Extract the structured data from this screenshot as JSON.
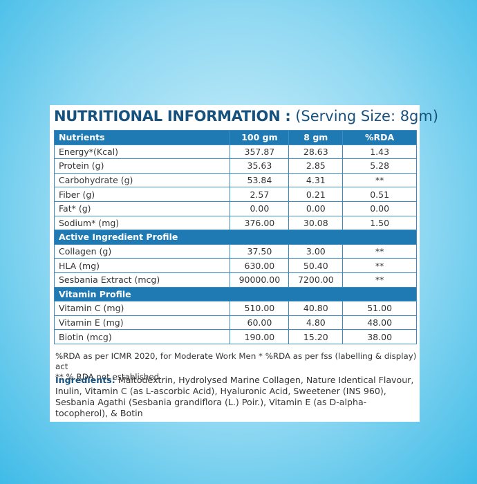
{
  "header": {
    "title": "NUTRITIONAL INFORMATION :",
    "serving": "(Serving Size: 8gm)"
  },
  "table": {
    "columns": [
      "Nutrients",
      "100 gm",
      "8 gm",
      "%RDA"
    ],
    "sections": [
      {
        "rows": [
          [
            "Energy*(Kcal)",
            "357.87",
            "28.63",
            "1.43"
          ],
          [
            "Protein (g)",
            "35.63",
            "2.85",
            "5.28"
          ],
          [
            "Carbohydrate (g)",
            "53.84",
            "4.31",
            "**"
          ],
          [
            "Fiber (g)",
            "2.57",
            "0.21",
            "0.51"
          ],
          [
            "Fat* (g)",
            "0.00",
            "0.00",
            "0.00"
          ],
          [
            "Sodium* (mg)",
            "376.00",
            "30.08",
            "1.50"
          ]
        ]
      },
      {
        "title": "Active Ingredient Profile",
        "rows": [
          [
            "Collagen (g)",
            "37.50",
            "3.00",
            "**"
          ],
          [
            "HLA (mg)",
            "630.00",
            "50.40",
            "**"
          ],
          [
            "Sesbania Extract (mcg)",
            "90000.00",
            "7200.00",
            "**"
          ]
        ]
      },
      {
        "title": "Vitamin Profile",
        "rows": [
          [
            "Vitamin C (mg)",
            "510.00",
            "40.80",
            "51.00"
          ],
          [
            "Vitamin E (mg)",
            "60.00",
            "4.80",
            "48.00"
          ],
          [
            "Biotin (mcg)",
            "190.00",
            "15.20",
            "38.00"
          ]
        ]
      }
    ]
  },
  "footnotes": [
    "%RDA as per ICMR 2020, for Moderate Work Men * %RDA as per fss (labelling & display) act",
    "** % RDA not established"
  ],
  "ingredients": {
    "label": "Ingredients:",
    "text": "Maltodextrin, Hydrolysed Marine Collagen, Nature Identical Flavour, Inulin, Vitamin C (as L-ascorbic Acid), Hyaluronic Acid, Sweetener (INS 960), Sesbania Agathi (Sesbania grandiflora (L.) Poir.), Vitamin E (as D-alpha-tocopherol), & Botin"
  }
}
